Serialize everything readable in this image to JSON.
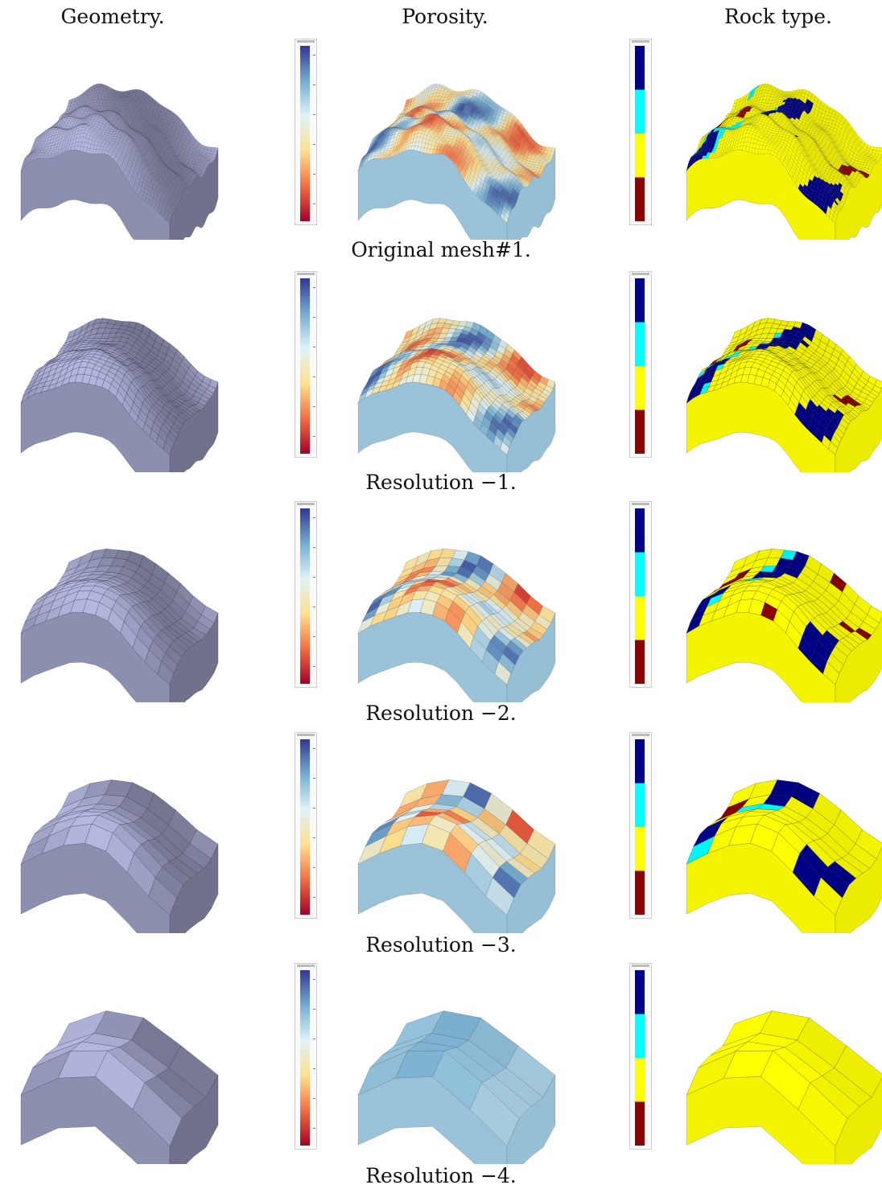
{
  "headers": {
    "geometry": "Geometry.",
    "porosity": "Porosity.",
    "rock": "Rock type."
  },
  "rows": [
    {
      "caption": "Original mesh#1.",
      "grid": 48
    },
    {
      "caption": "Resolution −1.",
      "grid": 22
    },
    {
      "caption": "Resolution −2.",
      "grid": 12
    },
    {
      "caption": "Resolution −3.",
      "grid": 7
    },
    {
      "caption": "Resolution −4.",
      "grid": 4
    }
  ],
  "colors": {
    "geometry": "#b4b8e0",
    "porosity_scale": [
      "#a50026",
      "#f46d43",
      "#fee090",
      "#e0f3f8",
      "#74add1",
      "#313695"
    ],
    "rock_types": [
      "#00008b",
      "#00ffff",
      "#ffff00",
      "#8b0000"
    ]
  }
}
